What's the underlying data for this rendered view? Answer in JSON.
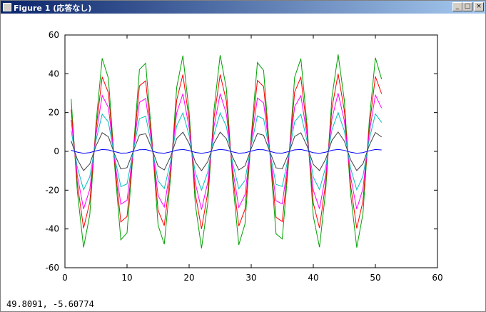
{
  "window": {
    "title": "Figure 1 (応答なし)",
    "status_text": "49.8091, -5.60774"
  },
  "chart_data": {
    "type": "line",
    "x": [
      1,
      2,
      3,
      4,
      5,
      6,
      7,
      8,
      9,
      10,
      11,
      12,
      13,
      14,
      15,
      16,
      17,
      18,
      19,
      20,
      21,
      22,
      23,
      24,
      25,
      26,
      27,
      28,
      29,
      30,
      31,
      32,
      33,
      34,
      35,
      36,
      37,
      38,
      39,
      40,
      41,
      42,
      43,
      44,
      45,
      46,
      47,
      48,
      49,
      50,
      51
    ],
    "series": [
      {
        "color": "#00a000",
        "values": [
          27,
          -20.8,
          -49.5,
          -32.7,
          14.2,
          48,
          37.7,
          -7.3,
          -45.6,
          -42,
          0.2,
          42.2,
          45.4,
          6.9,
          -38,
          -47.9,
          -13.8,
          33,
          49.4,
          20.4,
          -27.4,
          -50,
          -26.7,
          21.2,
          49.6,
          32.4,
          -14.6,
          -48.2,
          -37.4,
          7.7,
          45.8,
          41.7,
          -0.7,
          -42.5,
          -45.2,
          -6.4,
          38.3,
          47.8,
          13.4,
          -33.4,
          -49.4,
          -20,
          27.8,
          50,
          26.3,
          -21.6,
          -49.6,
          -32.1,
          15,
          48.3,
          37.2
        ]
      },
      {
        "color": "#ff0000",
        "values": [
          21.6,
          -16.6,
          -39.6,
          -26.2,
          11.4,
          38.4,
          30.2,
          -5.8,
          -36.4,
          -33.6,
          0.2,
          33.8,
          36.3,
          5.5,
          -30.4,
          -38.3,
          -11,
          26.4,
          39.6,
          16.3,
          -21.9,
          -40,
          -21.3,
          17,
          39.6,
          25.9,
          -11.7,
          -38.5,
          -29.9,
          6.2,
          36.6,
          33.4,
          -0.5,
          -34,
          -36.2,
          -5.1,
          30.6,
          38.2,
          10.7,
          -26.7,
          -39.5,
          -16,
          22.2,
          40,
          21,
          -17.3,
          -39.7,
          -25.6,
          12,
          38.6,
          29.7
        ]
      },
      {
        "color": "#ff00ff",
        "values": [
          16.2,
          -12.5,
          -29.7,
          -19.6,
          8.5,
          28.8,
          22.6,
          -4.4,
          -27.3,
          -25.2,
          0.1,
          25.3,
          27.2,
          4.1,
          -22.8,
          -28.7,
          -8.3,
          19.8,
          29.7,
          12.2,
          -16.4,
          -30,
          -16,
          12.7,
          29.7,
          19.4,
          -8.8,
          -28.9,
          -22.4,
          4.6,
          27.5,
          25,
          -0.4,
          -25.5,
          -27.1,
          -3.8,
          23,
          28.7,
          8,
          -20,
          -29.6,
          -12,
          16.7,
          30,
          15.8,
          -13,
          -29.8,
          -19.2,
          9,
          29,
          22.3
        ]
      },
      {
        "color": "#00bfbf",
        "values": [
          10.8,
          -8.3,
          -19.8,
          -13.1,
          5.7,
          19.2,
          15.1,
          -2.9,
          -18.2,
          -16.8,
          0.1,
          16.9,
          18.1,
          2.7,
          -15.2,
          -19.2,
          -5.5,
          13.2,
          19.8,
          8.2,
          -11,
          -20,
          -10.7,
          8.5,
          19.8,
          12.9,
          -5.8,
          -19.3,
          -15,
          3.1,
          18.3,
          16.7,
          -0.3,
          -17,
          -18.1,
          -2.6,
          15.3,
          19.1,
          5.3,
          -13.3,
          -19.7,
          -8,
          11.1,
          20,
          10.5,
          -8.6,
          -19.8,
          -12.8,
          6,
          19.3,
          14.9
        ]
      },
      {
        "color": "#404040",
        "values": [
          5.4,
          -4.2,
          -9.9,
          -6.5,
          2.8,
          9.6,
          7.5,
          -1.5,
          -9.1,
          -8.4,
          0,
          8.4,
          9.1,
          1.4,
          -7.6,
          -9.6,
          -2.8,
          6.6,
          9.9,
          4.1,
          -5.5,
          -10,
          -5.3,
          4.2,
          9.9,
          6.5,
          -2.9,
          -9.6,
          -7.5,
          1.5,
          9.2,
          8.3,
          -0.1,
          -8.5,
          -9,
          -1.3,
          7.7,
          9.6,
          2.7,
          -6.7,
          -9.9,
          -4,
          5.6,
          10,
          5.3,
          -4.3,
          -9.9,
          -6.4,
          3,
          9.7,
          7.4
        ]
      },
      {
        "color": "#0000ff",
        "values": [
          0.54,
          -0.42,
          -0.99,
          -0.65,
          0.28,
          0.96,
          0.75,
          -0.15,
          -0.91,
          -0.84,
          0,
          0.84,
          0.91,
          0.14,
          -0.76,
          -0.96,
          -0.28,
          0.66,
          0.99,
          0.41,
          -0.55,
          -1,
          -0.53,
          0.42,
          0.99,
          0.65,
          -0.29,
          -0.96,
          -0.75,
          0.15,
          0.92,
          0.83,
          -0.01,
          -0.85,
          -0.9,
          -0.13,
          0.77,
          0.96,
          0.27,
          -0.67,
          -0.99,
          -0.4,
          0.56,
          1,
          0.53,
          -0.43,
          -0.99,
          -0.64,
          0.3,
          0.97,
          0.74
        ]
      }
    ],
    "xlim": [
      0,
      60
    ],
    "ylim": [
      -60,
      60
    ],
    "xticks": [
      0,
      10,
      20,
      30,
      40,
      50,
      60
    ],
    "yticks": [
      -60,
      -40,
      -20,
      0,
      20,
      40,
      60
    ]
  }
}
